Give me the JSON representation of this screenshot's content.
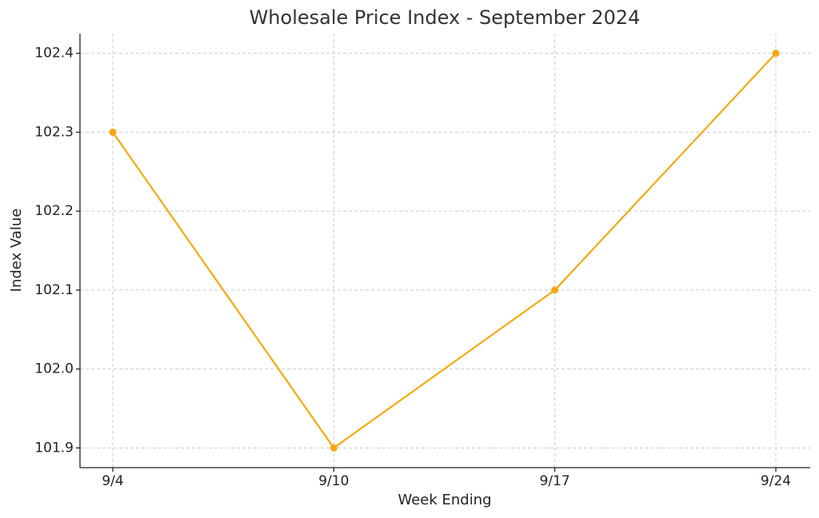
{
  "chart_data": {
    "type": "line",
    "title": "Wholesale Price Index - September 2024",
    "x_label": "Week Ending",
    "y_label": "Index Value",
    "categories": [
      "9/4",
      "9/10",
      "9/17",
      "9/24"
    ],
    "values": [
      102.3,
      101.9,
      102.1,
      102.4
    ],
    "color": "#f6a90f",
    "ylim": [
      101.875,
      102.425
    ],
    "yticks": [
      101.9,
      {
        "value": 102,
        "label": "102.0"
      },
      102.1,
      102.2,
      102.3,
      102.4
    ],
    "grid": true
  }
}
